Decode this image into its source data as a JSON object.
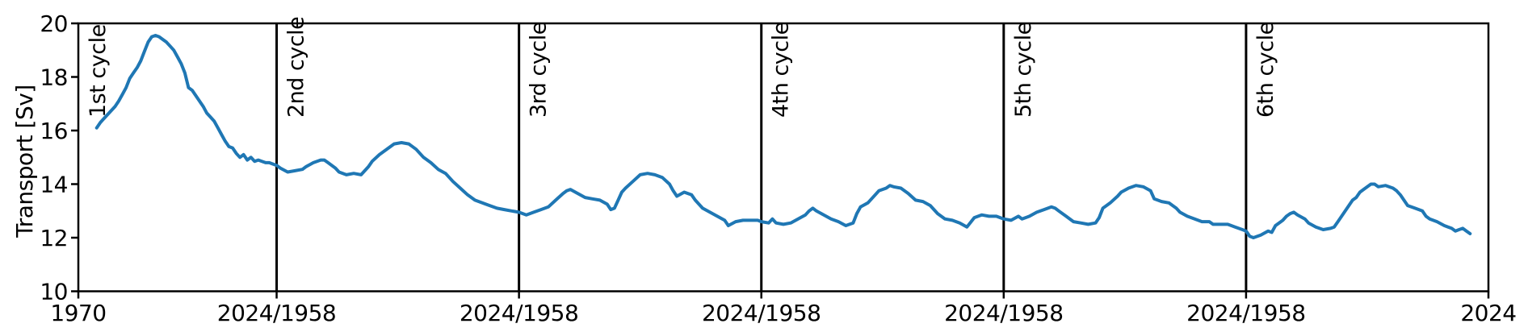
{
  "chart_data": {
    "type": "line",
    "title": "",
    "ylabel": "Transport [Sv]",
    "xlabel": "",
    "ylim": [
      10,
      20
    ],
    "yticks": [
      10,
      12,
      14,
      16,
      18,
      20
    ],
    "x_tick_labels": [
      "1970",
      "2024/1958",
      "2024/1958",
      "2024/1958",
      "2024/1958",
      "2024/1958",
      "2024"
    ],
    "grid": false,
    "legend": "none",
    "colors": {
      "line": "#1f77b4",
      "axis": "#000000",
      "background": "#ffffff"
    },
    "series_name": "Transport",
    "cycles": [
      {
        "label": "1st cycle",
        "start_year": 1970,
        "end_year": 2024,
        "points": [
          [
            1975,
            16.1
          ],
          [
            1976,
            16.3
          ],
          [
            1977,
            16.45
          ],
          [
            1978,
            16.6
          ],
          [
            1980,
            16.9
          ],
          [
            1981,
            17.1
          ],
          [
            1982,
            17.35
          ],
          [
            1983,
            17.6
          ],
          [
            1984,
            17.95
          ],
          [
            1985,
            18.15
          ],
          [
            1986,
            18.35
          ],
          [
            1987,
            18.6
          ],
          [
            1988,
            18.95
          ],
          [
            1989,
            19.3
          ],
          [
            1990,
            19.5
          ],
          [
            1991,
            19.55
          ],
          [
            1992,
            19.5
          ],
          [
            1993,
            19.4
          ],
          [
            1994,
            19.3
          ],
          [
            1995,
            19.15
          ],
          [
            1996,
            19.0
          ],
          [
            1997,
            18.75
          ],
          [
            1998,
            18.5
          ],
          [
            1999,
            18.15
          ],
          [
            2000,
            17.6
          ],
          [
            2001,
            17.5
          ],
          [
            2002,
            17.3
          ],
          [
            2003,
            17.1
          ],
          [
            2004,
            16.9
          ],
          [
            2005,
            16.65
          ],
          [
            2006,
            16.5
          ],
          [
            2007,
            16.35
          ],
          [
            2008,
            16.1
          ],
          [
            2009,
            15.85
          ],
          [
            2010,
            15.6
          ],
          [
            2011,
            15.4
          ],
          [
            2012,
            15.35
          ],
          [
            2013,
            15.15
          ],
          [
            2014,
            15.0
          ],
          [
            2015,
            15.1
          ],
          [
            2016,
            14.9
          ],
          [
            2017,
            15.0
          ],
          [
            2018,
            14.85
          ],
          [
            2019,
            14.9
          ],
          [
            2020,
            14.85
          ],
          [
            2021,
            14.8
          ],
          [
            2022,
            14.8
          ],
          [
            2023,
            14.75
          ],
          [
            2024,
            14.7
          ]
        ]
      },
      {
        "label": "2nd cycle",
        "start_year": 1958,
        "end_year": 2024,
        "points": [
          [
            1958,
            14.7
          ],
          [
            1959,
            14.6
          ],
          [
            1961,
            14.45
          ],
          [
            1963,
            14.5
          ],
          [
            1965,
            14.55
          ],
          [
            1966,
            14.65
          ],
          [
            1968,
            14.8
          ],
          [
            1970,
            14.9
          ],
          [
            1971,
            14.9
          ],
          [
            1972,
            14.8
          ],
          [
            1974,
            14.6
          ],
          [
            1975,
            14.45
          ],
          [
            1977,
            14.35
          ],
          [
            1979,
            14.4
          ],
          [
            1981,
            14.35
          ],
          [
            1983,
            14.65
          ],
          [
            1984,
            14.85
          ],
          [
            1986,
            15.1
          ],
          [
            1988,
            15.3
          ],
          [
            1990,
            15.5
          ],
          [
            1992,
            15.55
          ],
          [
            1994,
            15.5
          ],
          [
            1996,
            15.3
          ],
          [
            1998,
            15.0
          ],
          [
            2000,
            14.8
          ],
          [
            2002,
            14.55
          ],
          [
            2004,
            14.4
          ],
          [
            2006,
            14.1
          ],
          [
            2008,
            13.85
          ],
          [
            2010,
            13.6
          ],
          [
            2012,
            13.4
          ],
          [
            2014,
            13.3
          ],
          [
            2016,
            13.2
          ],
          [
            2018,
            13.1
          ],
          [
            2020,
            13.05
          ],
          [
            2022,
            13.0
          ],
          [
            2024,
            12.95
          ]
        ]
      },
      {
        "label": "3rd cycle",
        "start_year": 1958,
        "end_year": 2024,
        "points": [
          [
            1958,
            12.95
          ],
          [
            1960,
            12.85
          ],
          [
            1962,
            12.95
          ],
          [
            1964,
            13.05
          ],
          [
            1966,
            13.15
          ],
          [
            1968,
            13.4
          ],
          [
            1970,
            13.65
          ],
          [
            1971,
            13.75
          ],
          [
            1972,
            13.8
          ],
          [
            1974,
            13.65
          ],
          [
            1976,
            13.5
          ],
          [
            1978,
            13.45
          ],
          [
            1980,
            13.4
          ],
          [
            1982,
            13.25
          ],
          [
            1983,
            13.05
          ],
          [
            1984,
            13.1
          ],
          [
            1985,
            13.4
          ],
          [
            1986,
            13.7
          ],
          [
            1987,
            13.85
          ],
          [
            1989,
            14.1
          ],
          [
            1991,
            14.35
          ],
          [
            1993,
            14.4
          ],
          [
            1995,
            14.35
          ],
          [
            1997,
            14.25
          ],
          [
            1999,
            14.0
          ],
          [
            2000,
            13.75
          ],
          [
            2001,
            13.55
          ],
          [
            2003,
            13.7
          ],
          [
            2005,
            13.6
          ],
          [
            2006,
            13.4
          ],
          [
            2008,
            13.1
          ],
          [
            2010,
            12.95
          ],
          [
            2012,
            12.8
          ],
          [
            2014,
            12.65
          ],
          [
            2015,
            12.45
          ],
          [
            2017,
            12.6
          ],
          [
            2019,
            12.65
          ],
          [
            2021,
            12.65
          ],
          [
            2023,
            12.65
          ],
          [
            2024,
            12.6
          ]
        ]
      },
      {
        "label": "4th cycle",
        "start_year": 1958,
        "end_year": 2024,
        "points": [
          [
            1958,
            12.6
          ],
          [
            1960,
            12.55
          ],
          [
            1961,
            12.7
          ],
          [
            1962,
            12.55
          ],
          [
            1964,
            12.5
          ],
          [
            1966,
            12.55
          ],
          [
            1968,
            12.7
          ],
          [
            1970,
            12.85
          ],
          [
            1971,
            13.0
          ],
          [
            1972,
            13.1
          ],
          [
            1973,
            13.0
          ],
          [
            1975,
            12.85
          ],
          [
            1977,
            12.7
          ],
          [
            1979,
            12.6
          ],
          [
            1981,
            12.45
          ],
          [
            1983,
            12.55
          ],
          [
            1984,
            12.9
          ],
          [
            1985,
            13.15
          ],
          [
            1987,
            13.3
          ],
          [
            1989,
            13.6
          ],
          [
            1990,
            13.75
          ],
          [
            1992,
            13.85
          ],
          [
            1993,
            13.95
          ],
          [
            1994,
            13.9
          ],
          [
            1996,
            13.85
          ],
          [
            1998,
            13.65
          ],
          [
            2000,
            13.4
          ],
          [
            2002,
            13.35
          ],
          [
            2004,
            13.2
          ],
          [
            2006,
            12.9
          ],
          [
            2008,
            12.7
          ],
          [
            2010,
            12.65
          ],
          [
            2012,
            12.55
          ],
          [
            2014,
            12.4
          ],
          [
            2016,
            12.75
          ],
          [
            2018,
            12.85
          ],
          [
            2020,
            12.8
          ],
          [
            2022,
            12.8
          ],
          [
            2024,
            12.7
          ]
        ]
      },
      {
        "label": "5th cycle",
        "start_year": 1958,
        "end_year": 2024,
        "points": [
          [
            1958,
            12.7
          ],
          [
            1960,
            12.65
          ],
          [
            1962,
            12.8
          ],
          [
            1963,
            12.7
          ],
          [
            1965,
            12.8
          ],
          [
            1967,
            12.95
          ],
          [
            1969,
            13.05
          ],
          [
            1971,
            13.15
          ],
          [
            1972,
            13.1
          ],
          [
            1973,
            13.0
          ],
          [
            1975,
            12.8
          ],
          [
            1977,
            12.6
          ],
          [
            1979,
            12.55
          ],
          [
            1981,
            12.5
          ],
          [
            1983,
            12.55
          ],
          [
            1984,
            12.75
          ],
          [
            1985,
            13.1
          ],
          [
            1987,
            13.3
          ],
          [
            1989,
            13.55
          ],
          [
            1990,
            13.7
          ],
          [
            1992,
            13.85
          ],
          [
            1994,
            13.95
          ],
          [
            1996,
            13.9
          ],
          [
            1998,
            13.75
          ],
          [
            1999,
            13.45
          ],
          [
            2001,
            13.35
          ],
          [
            2003,
            13.3
          ],
          [
            2005,
            13.1
          ],
          [
            2006,
            12.95
          ],
          [
            2008,
            12.8
          ],
          [
            2010,
            12.7
          ],
          [
            2012,
            12.6
          ],
          [
            2014,
            12.6
          ],
          [
            2015,
            12.5
          ],
          [
            2017,
            12.5
          ],
          [
            2019,
            12.5
          ],
          [
            2021,
            12.4
          ],
          [
            2023,
            12.3
          ],
          [
            2024,
            12.25
          ]
        ]
      },
      {
        "label": "6th cycle",
        "start_year": 1958,
        "end_year": 2024,
        "points": [
          [
            1958,
            12.25
          ],
          [
            1959,
            12.05
          ],
          [
            1960,
            12.0
          ],
          [
            1962,
            12.1
          ],
          [
            1964,
            12.25
          ],
          [
            1965,
            12.2
          ],
          [
            1966,
            12.45
          ],
          [
            1967,
            12.55
          ],
          [
            1968,
            12.65
          ],
          [
            1969,
            12.8
          ],
          [
            1970,
            12.9
          ],
          [
            1971,
            12.95
          ],
          [
            1972,
            12.85
          ],
          [
            1974,
            12.7
          ],
          [
            1975,
            12.55
          ],
          [
            1977,
            12.4
          ],
          [
            1979,
            12.3
          ],
          [
            1981,
            12.35
          ],
          [
            1982,
            12.4
          ],
          [
            1983,
            12.6
          ],
          [
            1985,
            13.0
          ],
          [
            1986,
            13.2
          ],
          [
            1987,
            13.4
          ],
          [
            1988,
            13.5
          ],
          [
            1989,
            13.7
          ],
          [
            1990,
            13.8
          ],
          [
            1992,
            14.0
          ],
          [
            1993,
            14.0
          ],
          [
            1994,
            13.9
          ],
          [
            1996,
            13.95
          ],
          [
            1998,
            13.85
          ],
          [
            1999,
            13.75
          ],
          [
            2000,
            13.6
          ],
          [
            2001,
            13.4
          ],
          [
            2002,
            13.2
          ],
          [
            2004,
            13.1
          ],
          [
            2006,
            13.0
          ],
          [
            2007,
            12.8
          ],
          [
            2008,
            12.7
          ],
          [
            2010,
            12.6
          ],
          [
            2012,
            12.45
          ],
          [
            2013,
            12.4
          ],
          [
            2014,
            12.35
          ],
          [
            2015,
            12.25
          ],
          [
            2016,
            12.3
          ],
          [
            2017,
            12.35
          ],
          [
            2018,
            12.25
          ],
          [
            2019,
            12.15
          ]
        ]
      }
    ]
  }
}
